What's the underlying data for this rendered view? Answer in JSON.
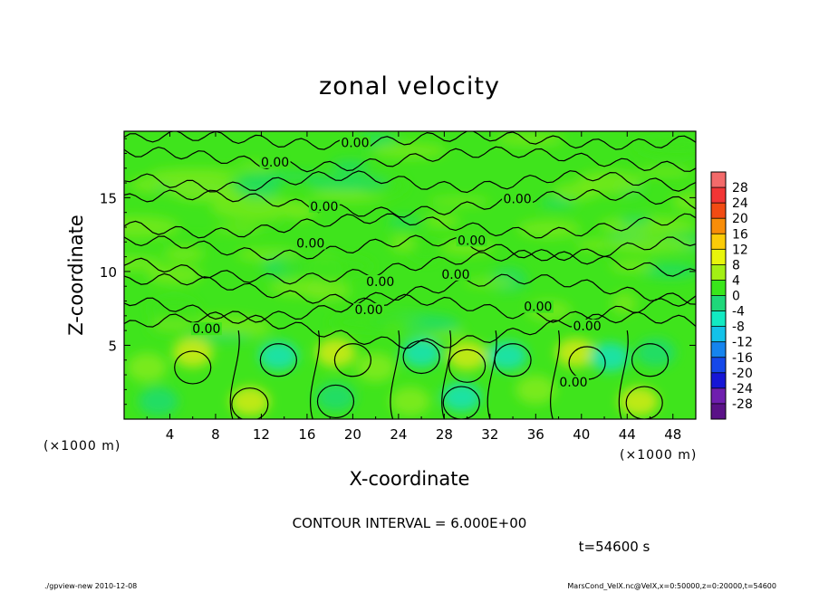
{
  "chart_data": {
    "type": "heatmap",
    "title": "zonal velocity",
    "xlabel": "X-coordinate",
    "ylabel": "Z-coordinate",
    "x_unit": "(×1000 m)",
    "y_unit": "(×1000 m)",
    "xlim": [
      0,
      50
    ],
    "ylim": [
      0,
      19.5
    ],
    "x_ticks": [
      4,
      8,
      12,
      16,
      20,
      24,
      28,
      32,
      36,
      40,
      44,
      48
    ],
    "y_ticks": [
      5,
      10,
      15
    ],
    "contour_interval_text": "CONTOUR INTERVAL = 6.000E+00",
    "time_text": "t=54600 s",
    "footer_left": "./gpview-new   2010-12-08",
    "footer_right": "MarsCond_VelX.nc@VelX,x=0:50000,z=0:20000,t=54600",
    "contour_labels": [
      {
        "text": "0.00",
        "x": 20.2,
        "z": 18.6
      },
      {
        "text": "0.00",
        "x": 13.2,
        "z": 17.3
      },
      {
        "text": "0.00",
        "x": 17.5,
        "z": 14.3
      },
      {
        "text": "0.00",
        "x": 34.4,
        "z": 14.8
      },
      {
        "text": "0.00",
        "x": 16.3,
        "z": 11.8
      },
      {
        "text": "0.00",
        "x": 30.4,
        "z": 12.0
      },
      {
        "text": "0.00",
        "x": 22.4,
        "z": 9.2
      },
      {
        "text": "0.00",
        "x": 29.0,
        "z": 9.7
      },
      {
        "text": "0.00",
        "x": 21.4,
        "z": 7.3
      },
      {
        "text": "0.00",
        "x": 36.2,
        "z": 7.5
      },
      {
        "text": "0.00",
        "x": 7.2,
        "z": 6.0
      },
      {
        "text": "0.00",
        "x": 40.5,
        "z": 6.2
      },
      {
        "text": "0.00",
        "x": 39.3,
        "z": 2.4
      }
    ],
    "colorbar": {
      "levels": [
        28,
        24,
        20,
        16,
        12,
        8,
        4,
        0,
        -4,
        -8,
        -12,
        -16,
        -20,
        -24,
        -28
      ],
      "colors": [
        "#f36a6a",
        "#f23535",
        "#f24b13",
        "#f88d08",
        "#fbcc08",
        "#e8f50c",
        "#a3ef14",
        "#39e61b",
        "#1ed77a",
        "#12e9c2",
        "#13c2e9",
        "#1684ee",
        "#1548e9",
        "#1616d6",
        "#6f1fae",
        "#5a1287"
      ]
    },
    "field_colors": {
      "base": "#3fe41c",
      "positive_weak": "#78ea1a",
      "positive_strong": "#bde914",
      "negative_weak": "#22dd63",
      "negative_strong": "#1de2a2"
    },
    "contour_color": "#000000"
  }
}
